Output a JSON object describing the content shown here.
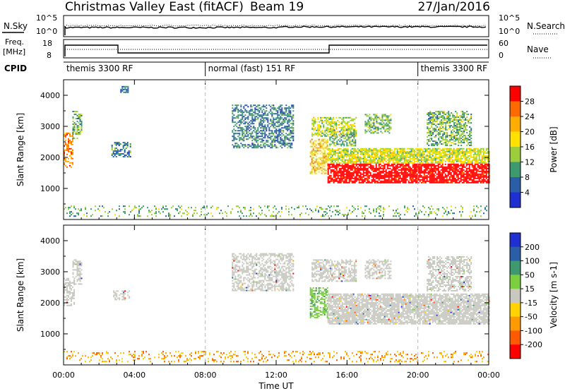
{
  "header": {
    "title": "Christmas Valley East (fitACF)",
    "beam": "Beam 19",
    "date": "27/Jan/2016"
  },
  "nsky_panel": {
    "left_label": "N.Sky",
    "left_ticks": [
      "10^5",
      "10^0"
    ],
    "right_label": "N.Search",
    "right_ticks": [
      "10^5",
      "10^0"
    ]
  },
  "freq_panel": {
    "left_label_line1": "Freq.",
    "left_label_line2": "[MHz]",
    "left_ticks": [
      "18",
      "8"
    ],
    "right_label": "Nave",
    "right_ticks": [
      "60",
      "0"
    ]
  },
  "cpid": {
    "label": "CPID",
    "segments": [
      {
        "name": "themis 3300 RF",
        "start_h": 0,
        "end_h": 8
      },
      {
        "name": "normal (fast) 151 RF",
        "start_h": 8,
        "end_h": 20
      },
      {
        "name": "themis 3300 RF",
        "start_h": 20,
        "end_h": 24
      }
    ]
  },
  "chart_data": [
    {
      "type": "heatmap",
      "panel": "power",
      "ylabel": "Slant Range [km]",
      "colorbar_label": "Power [dB]",
      "colorbar_ticks": [
        "28",
        "24",
        "20",
        "16",
        "12",
        "8",
        "4"
      ],
      "colorbar_colors": [
        "#ff0000",
        "#ff6a00",
        "#ffae00",
        "#ffe100",
        "#9ccd3c",
        "#3e9a6e",
        "#2a5fa8",
        "#1f2fd0"
      ],
      "ylim": [
        0,
        4500
      ],
      "y_ticks": [
        "4000",
        "3000",
        "2000",
        "1000"
      ],
      "x_ticks": [
        "00:00",
        "04:00",
        "08:00",
        "12:00",
        "16:00",
        "20:00",
        "00:00"
      ],
      "xlim_hours": [
        0,
        24
      ],
      "vlines_hours": [
        8,
        20
      ],
      "regions": [
        {
          "t0": 0.0,
          "t1": 0.5,
          "r0": 1700,
          "r1": 2800,
          "level": 22
        },
        {
          "t0": 0.5,
          "t1": 1.0,
          "r0": 2600,
          "r1": 3500,
          "level": 10
        },
        {
          "t0": 2.7,
          "t1": 3.8,
          "r0": 2000,
          "r1": 2500,
          "level": 6
        },
        {
          "t0": 3.2,
          "t1": 3.6,
          "r0": 4100,
          "r1": 4300,
          "level": 6
        },
        {
          "t0": 9.5,
          "t1": 13.0,
          "r0": 2300,
          "r1": 3700,
          "level": 6
        },
        {
          "t0": 13.9,
          "t1": 14.9,
          "r0": 1500,
          "r1": 2600,
          "level": 18
        },
        {
          "t0": 14.0,
          "t1": 16.5,
          "r0": 2700,
          "r1": 3300,
          "level": 12
        },
        {
          "t0": 14.9,
          "t1": 24.0,
          "r0": 1200,
          "r1": 1800,
          "level": 28
        },
        {
          "t0": 14.9,
          "t1": 24.0,
          "r0": 1800,
          "r1": 2300,
          "level": 14
        },
        {
          "t0": 15.0,
          "t1": 16.5,
          "r0": 2400,
          "r1": 2900,
          "level": 10
        },
        {
          "t0": 17.0,
          "t1": 18.5,
          "r0": 2800,
          "r1": 3400,
          "level": 10
        },
        {
          "t0": 20.5,
          "t1": 23.0,
          "r0": 2400,
          "r1": 3500,
          "level": 8
        },
        {
          "t0": 0.0,
          "t1": 24.0,
          "r0": 100,
          "r1": 450,
          "level": 10
        }
      ]
    },
    {
      "type": "heatmap",
      "panel": "velocity",
      "ylabel": "Slant Range [km]",
      "colorbar_label": "Velocity [m s-1]",
      "colorbar_ticks": [
        "200",
        "100",
        "50",
        "15",
        "-15",
        "-50",
        "-100",
        "-200"
      ],
      "colorbar_colors": [
        "#1f2fd0",
        "#2a5fa8",
        "#3e9a6e",
        "#7cd040",
        "#c8c8c0",
        "#ffd200",
        "#ff9a00",
        "#ff5a00",
        "#ff0000"
      ],
      "ylim": [
        0,
        4500
      ],
      "y_ticks": [
        "4000",
        "3000",
        "2000",
        "1000"
      ],
      "x_ticks": [
        "00:00",
        "04:00",
        "08:00",
        "12:00",
        "16:00",
        "20:00",
        "00:00"
      ],
      "xlabel": "Time UT",
      "xlim_hours": [
        0,
        24
      ],
      "vlines_hours": [
        8,
        20
      ],
      "regions": [
        {
          "t0": 0.0,
          "t1": 0.6,
          "r0": 1900,
          "r1": 2800,
          "vel": 0
        },
        {
          "t0": 0.5,
          "t1": 1.0,
          "r0": 2600,
          "r1": 3400,
          "vel": 0
        },
        {
          "t0": 2.8,
          "t1": 3.7,
          "r0": 2100,
          "r1": 2400,
          "vel": 0
        },
        {
          "t0": 9.5,
          "t1": 13.0,
          "r0": 2400,
          "r1": 3600,
          "vel": 0
        },
        {
          "t0": 13.9,
          "t1": 14.9,
          "r0": 1500,
          "r1": 2500,
          "vel": 30
        },
        {
          "t0": 14.0,
          "t1": 16.5,
          "r0": 2700,
          "r1": 3400,
          "vel": 0
        },
        {
          "t0": 14.9,
          "t1": 24.0,
          "r0": 1300,
          "r1": 2300,
          "vel": 0
        },
        {
          "t0": 17.0,
          "t1": 18.5,
          "r0": 2800,
          "r1": 3400,
          "vel": 0
        },
        {
          "t0": 20.5,
          "t1": 23.0,
          "r0": 2400,
          "r1": 3500,
          "vel": 0
        },
        {
          "t0": 0.0,
          "t1": 24.0,
          "r0": 100,
          "r1": 450,
          "vel": -40
        }
      ]
    }
  ]
}
